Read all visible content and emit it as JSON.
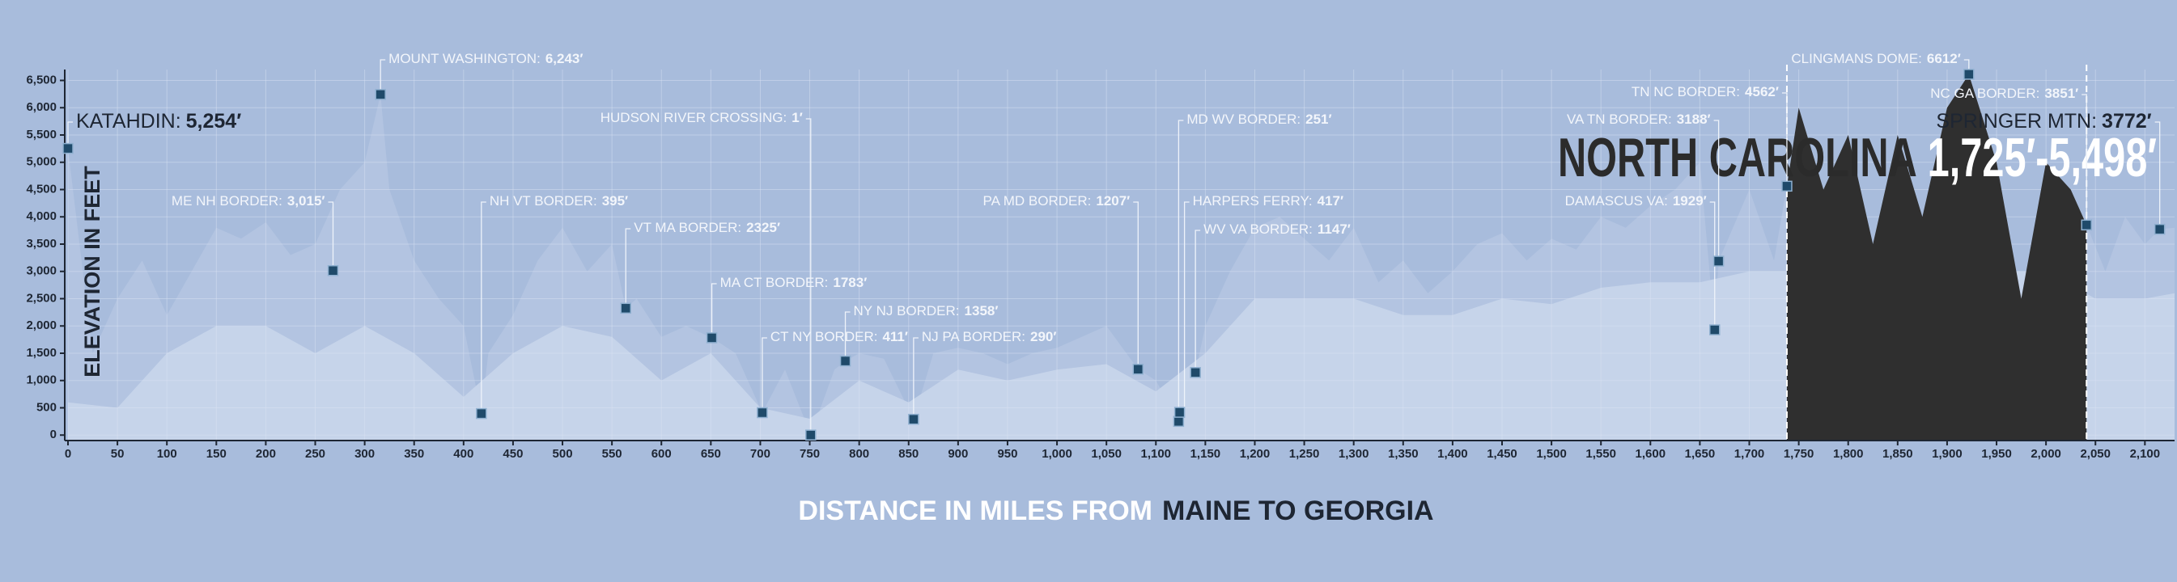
{
  "chart_data": {
    "type": "area",
    "y_title": "ELEVATION IN FEET",
    "x_title": "DISTANCE IN MILES FROM",
    "x_title_emphasis": "MAINE TO GEORGIA",
    "xlim": [
      0,
      2130
    ],
    "ylim": [
      -100,
      6700
    ],
    "grid": true,
    "background": "#a8bcdc",
    "xticks": [
      0,
      50,
      100,
      150,
      200,
      250,
      300,
      350,
      400,
      450,
      500,
      550,
      600,
      650,
      700,
      750,
      800,
      850,
      900,
      950,
      {
        "value": 1000,
        "label": "1,000"
      },
      {
        "value": 1050,
        "label": "1,050"
      },
      {
        "value": 1100,
        "label": "1,100"
      },
      {
        "value": 1150,
        "label": "1,150"
      },
      {
        "value": 1200,
        "label": "1,200"
      },
      {
        "value": 1250,
        "label": "1,250"
      },
      {
        "value": 1300,
        "label": "1,300"
      },
      {
        "value": 1350,
        "label": "1,350"
      },
      {
        "value": 1400,
        "label": "1,400"
      },
      {
        "value": 1450,
        "label": "1,450"
      },
      {
        "value": 1500,
        "label": "1,500"
      },
      {
        "value": 1550,
        "label": "1,550"
      },
      {
        "value": 1600,
        "label": "1,600"
      },
      {
        "value": 1650,
        "label": "1,650"
      },
      {
        "value": 1700,
        "label": "1,700"
      },
      {
        "value": 1750,
        "label": "1,750"
      },
      {
        "value": 1800,
        "label": "1,800"
      },
      {
        "value": 1850,
        "label": "1,850"
      },
      {
        "value": 1900,
        "label": "1,900"
      },
      {
        "value": 1950,
        "label": "1,950"
      },
      {
        "value": 2000,
        "label": "2,000"
      },
      {
        "value": 2050,
        "label": "2,050"
      },
      {
        "value": 2100,
        "label": "2,100"
      }
    ],
    "yticks": [
      0,
      500,
      {
        "value": 1000,
        "label": "1,000"
      },
      {
        "value": 1500,
        "label": "1,500"
      },
      {
        "value": 2000,
        "label": "2,000"
      },
      {
        "value": 2500,
        "label": "2,500"
      },
      {
        "value": 3000,
        "label": "3,000"
      },
      {
        "value": 3500,
        "label": "3,500"
      },
      {
        "value": 4000,
        "label": "4,000"
      },
      {
        "value": 4500,
        "label": "4,500"
      },
      {
        "value": 5000,
        "label": "5,000"
      },
      {
        "value": 5500,
        "label": "5,500"
      },
      {
        "value": 6000,
        "label": "6,000"
      },
      {
        "value": 6500,
        "label": "6,500"
      }
    ],
    "series": [
      {
        "color": "#b3c4e1",
        "x": [
          0,
          25,
          50,
          75,
          100,
          125,
          150,
          175,
          200,
          225,
          250,
          275,
          300,
          316,
          325,
          350,
          375,
          400,
          418,
          425,
          450,
          475,
          500,
          525,
          550,
          564,
          575,
          600,
          625,
          651,
          675,
          702,
          725,
          751,
          775,
          786,
          800,
          825,
          855,
          875,
          900,
          925,
          950,
          975,
          1000,
          1025,
          1050,
          1082,
          1100,
          1123,
          1140,
          1150,
          1175,
          1200,
          1225,
          1250,
          1275,
          1300,
          1325,
          1350,
          1375,
          1400,
          1425,
          1450,
          1475,
          1500,
          1525,
          1550,
          1575,
          1600,
          1625,
          1650,
          1665,
          1669,
          1700,
          1725,
          1738,
          1750,
          1775,
          1800,
          1825,
          1850,
          1875,
          1900,
          1922,
          1950,
          1975,
          2000,
          2025,
          2041,
          2060,
          2080,
          2100,
          2115,
          2130
        ],
        "values": [
          5254,
          1500,
          2500,
          3200,
          2200,
          3000,
          3800,
          3600,
          3900,
          3300,
          3500,
          4500,
          5000,
          6243,
          4500,
          3200,
          2500,
          2000,
          395,
          1500,
          2200,
          3200,
          3800,
          3000,
          3500,
          2325,
          2500,
          1800,
          2000,
          1783,
          1500,
          411,
          1200,
          1,
          1200,
          1358,
          1500,
          1400,
          290,
          1500,
          1600,
          1500,
          1300,
          1500,
          1600,
          1800,
          2000,
          1207,
          1000,
          251,
          1147,
          2000,
          3000,
          3800,
          4000,
          3600,
          3200,
          3800,
          2800,
          3200,
          2600,
          3000,
          3500,
          3700,
          3200,
          3600,
          3400,
          4000,
          3800,
          4200,
          4500,
          5000,
          1929,
          3188,
          4500,
          3200,
          4562,
          6000,
          4500,
          5500,
          3500,
          5500,
          4000,
          6000,
          6612,
          5000,
          2500,
          5000,
          4500,
          3851,
          3000,
          4000,
          3500,
          3772,
          3800
        ]
      },
      {
        "color": "#c6d4ea",
        "x": [
          0,
          50,
          100,
          150,
          200,
          250,
          300,
          350,
          400,
          450,
          500,
          550,
          600,
          650,
          700,
          750,
          800,
          850,
          900,
          950,
          1000,
          1050,
          1100,
          1150,
          1200,
          1250,
          1300,
          1350,
          1400,
          1450,
          1500,
          1550,
          1600,
          1650,
          1700,
          1750,
          1800,
          1850,
          1900,
          1950,
          2000,
          2050,
          2100,
          2130
        ],
        "values": [
          600,
          500,
          1500,
          2000,
          2000,
          1500,
          2000,
          1500,
          700,
          1500,
          2000,
          1800,
          1000,
          1500,
          500,
          300,
          1000,
          600,
          1200,
          1000,
          1200,
          1300,
          800,
          1500,
          2500,
          2500,
          2500,
          2200,
          2200,
          2500,
          2400,
          2700,
          2800,
          2800,
          3000,
          3000,
          3000,
          3000,
          3000,
          3000,
          3000,
          2500,
          2500,
          2600
        ]
      }
    ],
    "highlight": {
      "label": "NORTH CAROLINA",
      "range_label": "1,725′-5,498′",
      "x_start": 1738,
      "x_end": 2041,
      "color": "#2f2f2f"
    },
    "marker_color": "#1f4a6a",
    "annotations": [
      {
        "label": "KATAHDIN:",
        "value_label": "5,254′",
        "x": 0,
        "y": 5254
      },
      {
        "label": "ME NH BORDER:",
        "value_label": "3,015′",
        "x": 268,
        "y": 3015
      },
      {
        "label": "MOUNT WASHINGTON:",
        "value_label": "6,243′",
        "x": 316,
        "y": 6243
      },
      {
        "label": "NH VT BORDER:",
        "value_label": "395′",
        "x": 418,
        "y": 395
      },
      {
        "label": "VT MA BORDER:",
        "value_label": "2325′",
        "x": 564,
        "y": 2325
      },
      {
        "label": "MA CT BORDER:",
        "value_label": "1783′",
        "x": 651,
        "y": 1783
      },
      {
        "label": "CT NY BORDER:",
        "value_label": "411′",
        "x": 702,
        "y": 411
      },
      {
        "label": "HUDSON RIVER CROSSING:",
        "value_label": "1′",
        "x": 751,
        "y": 1
      },
      {
        "label": "NY NJ BORDER:",
        "value_label": "1358′",
        "x": 786,
        "y": 1358
      },
      {
        "label": "NJ PA BORDER:",
        "value_label": "290′",
        "x": 855,
        "y": 290
      },
      {
        "label": "PA MD BORDER:",
        "value_label": "1207′",
        "x": 1082,
        "y": 1207
      },
      {
        "label": "MD WV BORDER:",
        "value_label": "251′",
        "x": 1123,
        "y": 251
      },
      {
        "label": "HARPERS FERRY:",
        "value_label": "417′",
        "x": 1124,
        "y": 417
      },
      {
        "label": "WV VA BORDER:",
        "value_label": "1147′",
        "x": 1140,
        "y": 1147
      },
      {
        "label": "DAMASCUS VA:",
        "value_label": "1929′",
        "x": 1665,
        "y": 1929
      },
      {
        "label": "VA TN BORDER:",
        "value_label": "3188′",
        "x": 1669,
        "y": 3188
      },
      {
        "label": "TN NC BORDER:",
        "value_label": "4562′",
        "x": 1738,
        "y": 4562
      },
      {
        "label": "CLINGMANS DOME:",
        "value_label": "6612′",
        "x": 1922,
        "y": 6612
      },
      {
        "label": "NC GA BORDER:",
        "value_label": "3851′",
        "x": 2041,
        "y": 3851
      },
      {
        "label": "SPRINGER MTN:",
        "value_label": "3772′",
        "x": 2115,
        "y": 3772
      }
    ]
  }
}
